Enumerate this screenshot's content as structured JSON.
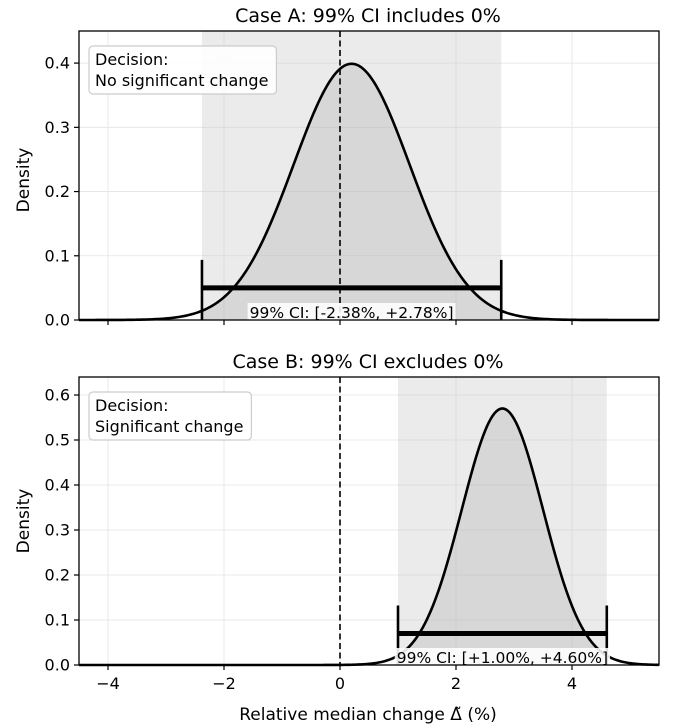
{
  "xlabel": "Relative median change Δ̃ (%)",
  "chart_data": [
    {
      "type": "area",
      "title": "Case A: 99% CI includes 0%",
      "ylabel": "Density",
      "xlim": [
        -4.5,
        5.5
      ],
      "ylim": [
        0,
        0.45
      ],
      "xticks": [
        -4,
        -2,
        0,
        2,
        4
      ],
      "xtick_labels": [
        "−4",
        "−2",
        "0",
        "2",
        "4"
      ],
      "yticks": [
        0.0,
        0.1,
        0.2,
        0.3,
        0.4
      ],
      "ytick_labels": [
        "0.0",
        "0.1",
        "0.2",
        "0.3",
        "0.4"
      ],
      "show_xtick_labels": false,
      "grid": true,
      "distribution": {
        "mean": 0.2,
        "sd": 1.0,
        "peak_density": 0.399
      },
      "ci": {
        "low": -2.38,
        "high": 2.78,
        "bar_y": 0.05
      },
      "ci_label": "99% CI: [-2.38%, +2.78%]",
      "reference_line_x": 0,
      "decision_title": "Decision:",
      "decision_text": "No significant change"
    },
    {
      "type": "area",
      "title": "Case B: 99% CI excludes 0%",
      "ylabel": "Density",
      "xlim": [
        -4.5,
        5.5
      ],
      "ylim": [
        0,
        0.64
      ],
      "xticks": [
        -4,
        -2,
        0,
        2,
        4
      ],
      "xtick_labels": [
        "−4",
        "−2",
        "0",
        "2",
        "4"
      ],
      "yticks": [
        0.0,
        0.1,
        0.2,
        0.3,
        0.4,
        0.5,
        0.6
      ],
      "ytick_labels": [
        "0.0",
        "0.1",
        "0.2",
        "0.3",
        "0.4",
        "0.5",
        "0.6"
      ],
      "show_xtick_labels": true,
      "grid": true,
      "distribution": {
        "mean": 2.8,
        "sd": 0.7,
        "peak_density": 0.57
      },
      "ci": {
        "low": 1.0,
        "high": 4.6,
        "bar_y": 0.07
      },
      "ci_label": "99% CI: [+1.00%, +4.60%]",
      "reference_line_x": 0,
      "decision_title": "Decision:",
      "decision_text": "Significant change"
    }
  ]
}
